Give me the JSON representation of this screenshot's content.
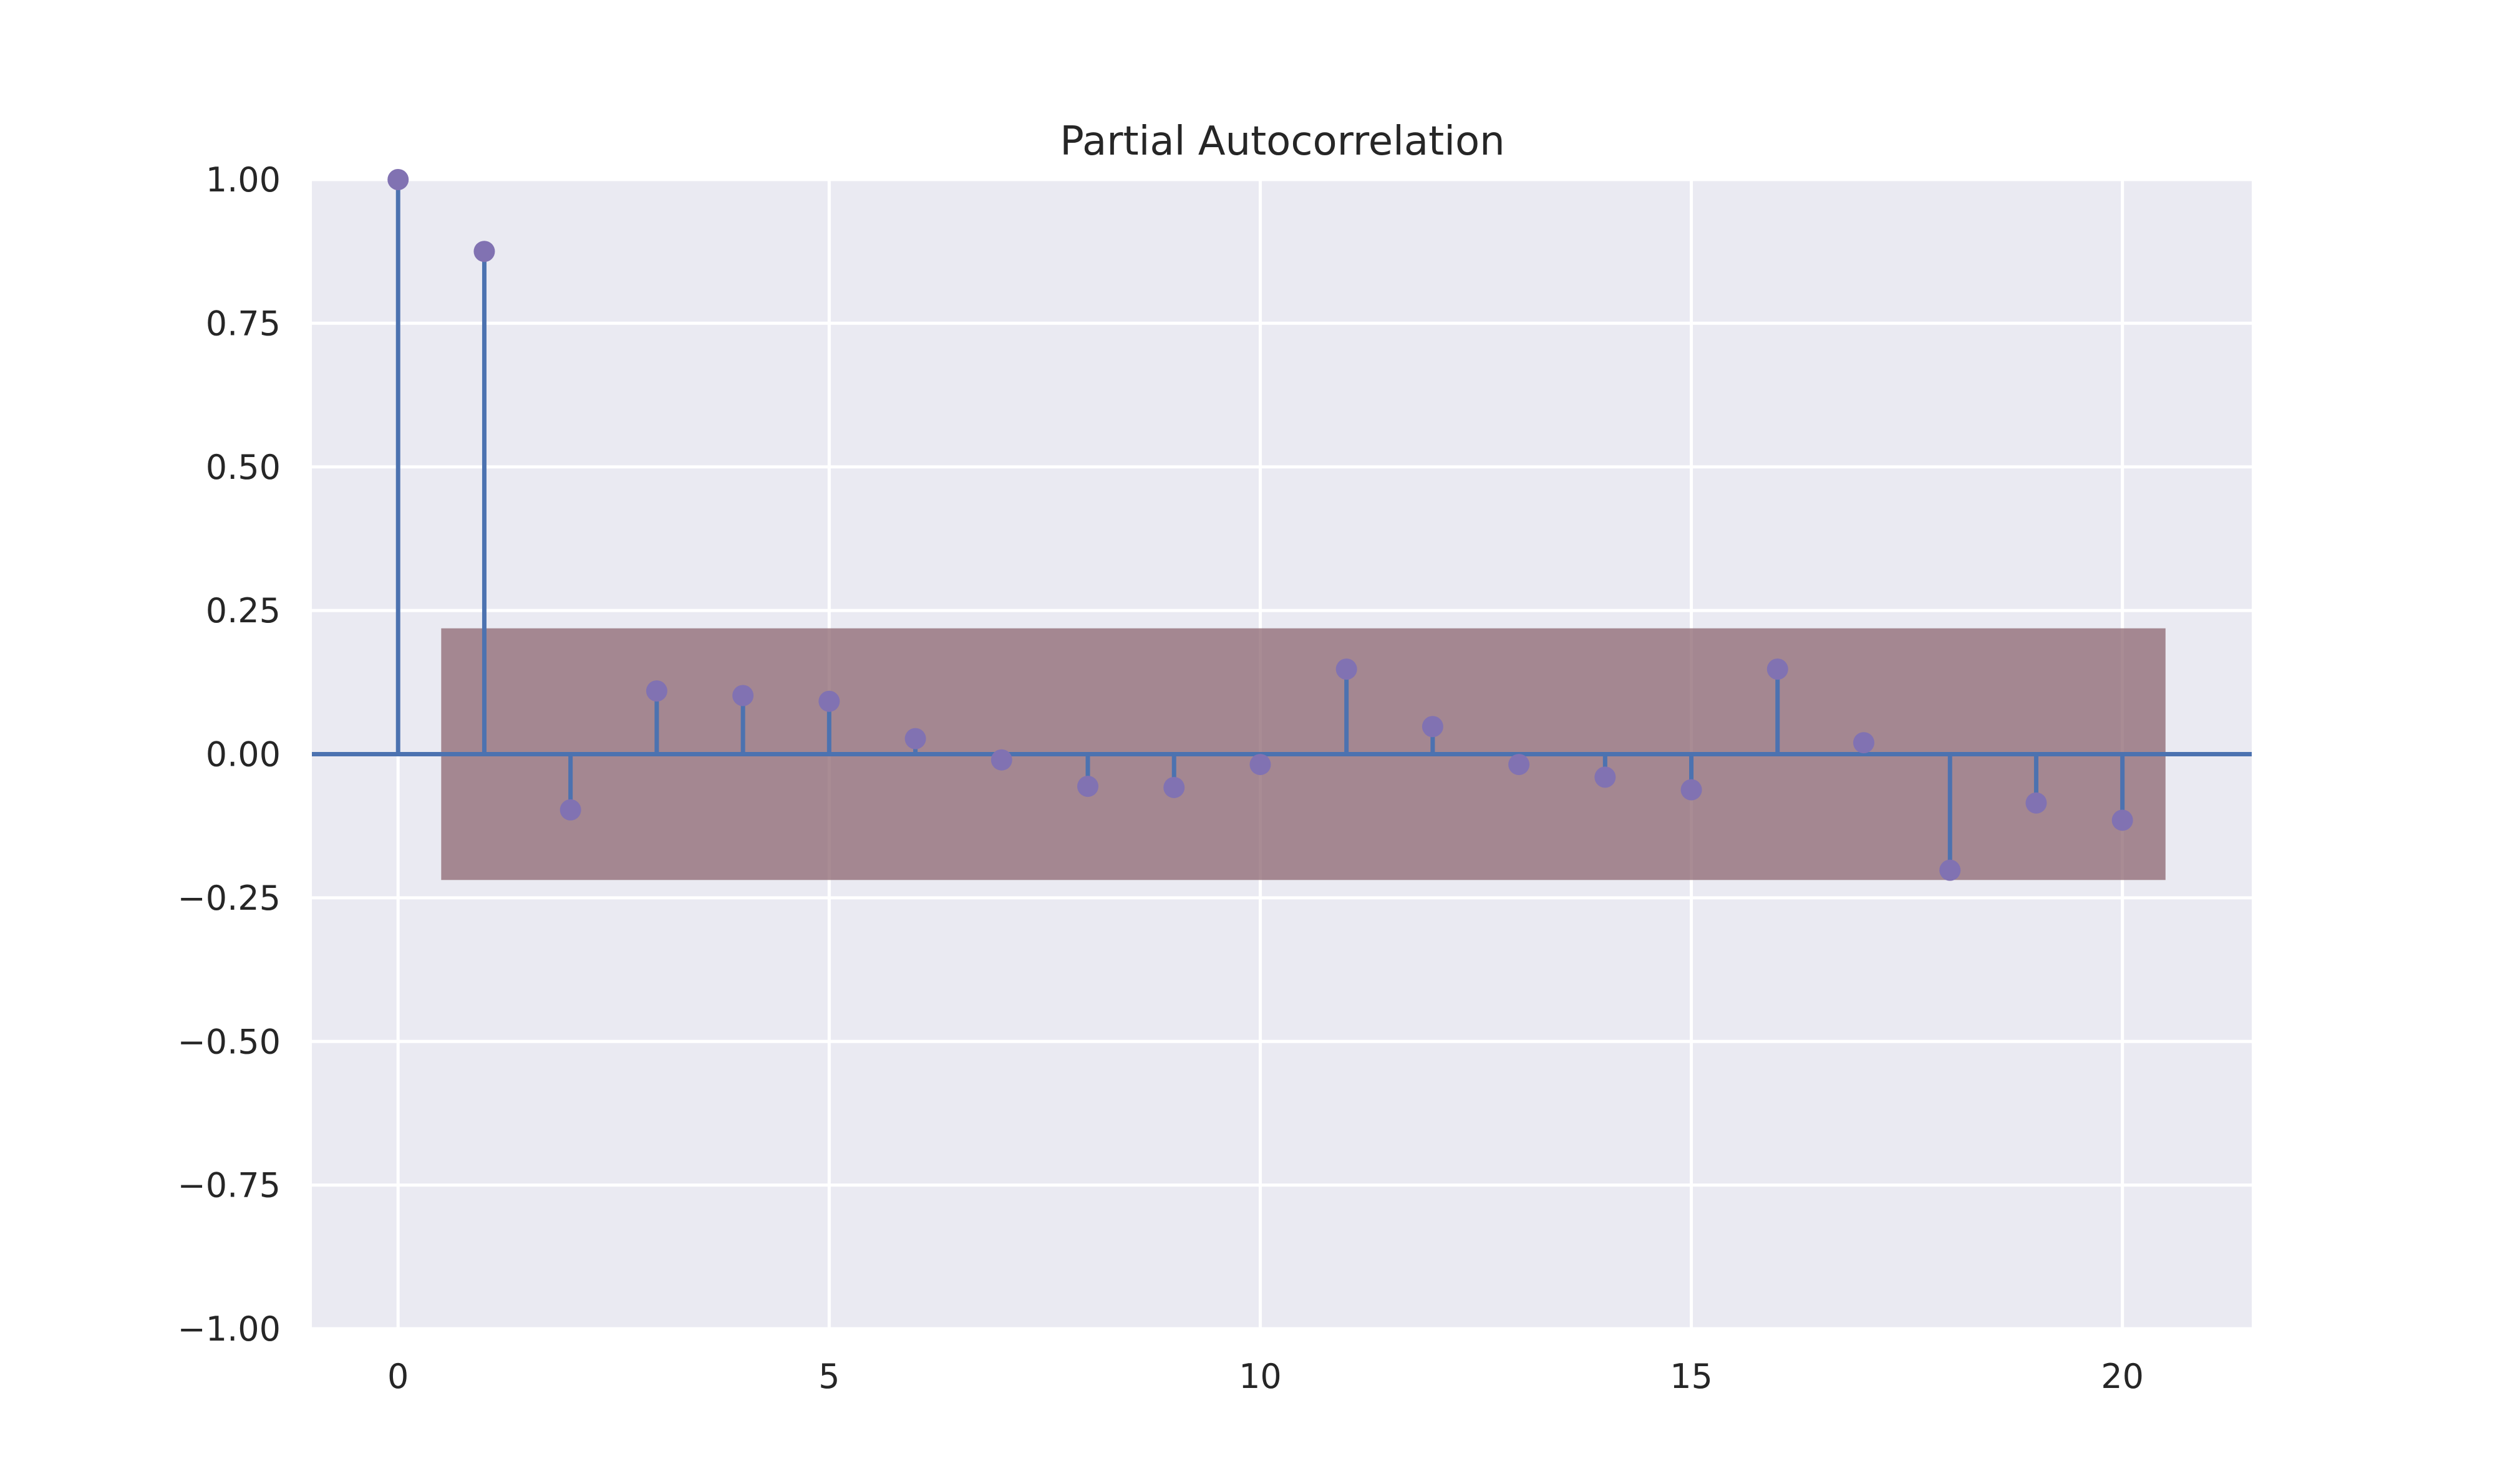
{
  "chart_data": {
    "type": "stem",
    "title": "Partial Autocorrelation",
    "xlabel": "",
    "ylabel": "",
    "xlim": [
      -1,
      21.5
    ],
    "ylim": [
      -1.0,
      1.0
    ],
    "x_ticks": [
      0,
      5,
      10,
      15,
      20
    ],
    "x_tick_labels": [
      "0",
      "5",
      "10",
      "15",
      "20"
    ],
    "y_ticks": [
      1.0,
      0.75,
      0.5,
      0.25,
      0.0,
      -0.25,
      -0.5,
      -0.75,
      -1.0
    ],
    "y_tick_labels": [
      "1.00",
      "0.75",
      "0.50",
      "0.25",
      "0.00",
      "−0.25",
      "−0.50",
      "−0.75",
      "−1.00"
    ],
    "grid": true,
    "lags": [
      0,
      1,
      2,
      3,
      4,
      5,
      6,
      7,
      8,
      9,
      10,
      11,
      12,
      13,
      14,
      15,
      16,
      17,
      18,
      19,
      20
    ],
    "values": [
      1.0,
      0.875,
      -0.097,
      0.11,
      0.102,
      0.092,
      0.027,
      -0.01,
      -0.056,
      -0.058,
      -0.018,
      0.148,
      0.048,
      -0.018,
      -0.04,
      -0.062,
      0.148,
      0.02,
      -0.202,
      -0.085,
      -0.115
    ],
    "confidence_band": {
      "x_start": 0.5,
      "x_end": 20.5,
      "upper": 0.219,
      "lower": -0.219
    },
    "colors": {
      "plot_background": "#eaeaf2",
      "grid": "#ffffff",
      "stem": "#4c72b0",
      "marker": "#8172b2",
      "baseline": "#4c72b0",
      "confidence_band": "#8c6670",
      "text": "#262626"
    }
  }
}
